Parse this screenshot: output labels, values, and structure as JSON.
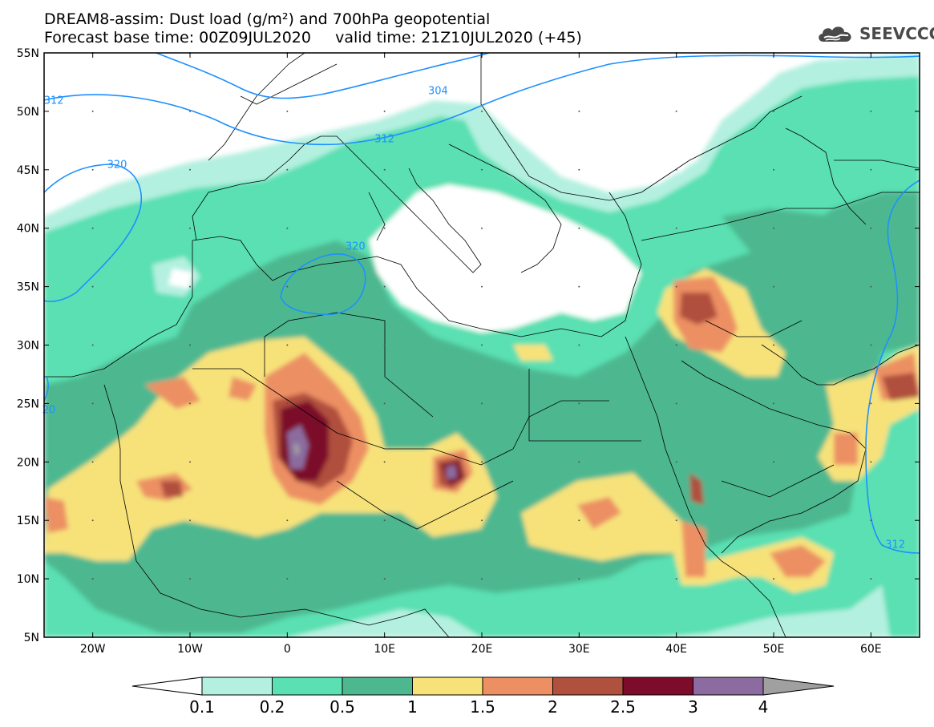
{
  "title_line1": "DREAM8-assim: Dust load (g/m²) and 700hPa geopotential",
  "title_line2": "Forecast base time: 00Z09JUL2020     valid time: 21Z10JUL2020 (+45)",
  "logo": {
    "text": "SEEVCCC",
    "icon": "cloud-logo-icon",
    "color": "#4a4a4a"
  },
  "map": {
    "lon_range": [
      -25,
      65
    ],
    "lat_range": [
      5,
      55
    ],
    "lat_ticks": [
      {
        "value": 55,
        "label": "55N"
      },
      {
        "value": 50,
        "label": "50N"
      },
      {
        "value": 45,
        "label": "45N"
      },
      {
        "value": 40,
        "label": "40N"
      },
      {
        "value": 35,
        "label": "35N"
      },
      {
        "value": 30,
        "label": "30N"
      },
      {
        "value": 25,
        "label": "25N"
      },
      {
        "value": 20,
        "label": "20N"
      },
      {
        "value": 15,
        "label": "15N"
      },
      {
        "value": 10,
        "label": "10N"
      },
      {
        "value": 5,
        "label": "5N"
      }
    ],
    "lon_ticks": [
      {
        "value": -20,
        "label": "20W"
      },
      {
        "value": -10,
        "label": "10W"
      },
      {
        "value": 0,
        "label": "0"
      },
      {
        "value": 10,
        "label": "10E"
      },
      {
        "value": 20,
        "label": "20E"
      },
      {
        "value": 30,
        "label": "30E"
      },
      {
        "value": 40,
        "label": "40E"
      },
      {
        "value": 50,
        "label": "50E"
      },
      {
        "value": 60,
        "label": "60E"
      }
    ],
    "contour_labels": [
      {
        "text": "304",
        "lon": 15.5,
        "lat": 51.8
      },
      {
        "text": "312",
        "lon": 10.0,
        "lat": 47.7
      },
      {
        "text": "312",
        "lon": -24.0,
        "lat": 51.0
      },
      {
        "text": "320",
        "lon": -17.5,
        "lat": 45.5
      },
      {
        "text": "320",
        "lon": 7.0,
        "lat": 38.5
      },
      {
        "text": "20",
        "lon": -24.5,
        "lat": 24.5
      },
      {
        "text": "312",
        "lon": 62.5,
        "lat": 13.0
      }
    ]
  },
  "colorbar": {
    "labels": [
      "0.1",
      "0.2",
      "0.5",
      "1",
      "1.5",
      "2",
      "2.5",
      "3",
      "4"
    ],
    "colors": [
      "#b4f0e0",
      "#5ae0b2",
      "#4db890",
      "#f7e27a",
      "#ec9064",
      "#b0503e",
      "#7c0c2a",
      "#8c6ca0"
    ],
    "under_color": "#ffffff",
    "over_color": "#a0a0a0"
  }
}
